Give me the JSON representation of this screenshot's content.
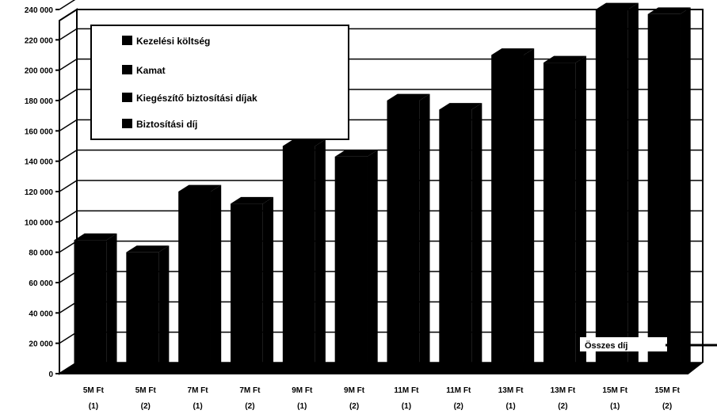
{
  "chart_data": {
    "type": "bar",
    "title": "",
    "xlabel": "",
    "ylabel": "",
    "ylim": [
      0,
      240000
    ],
    "yticks": [
      0,
      20000,
      40000,
      60000,
      80000,
      100000,
      120000,
      140000,
      160000,
      180000,
      200000,
      220000,
      240000
    ],
    "ytick_labels": [
      "0",
      "20 000",
      "40 000",
      "60 000",
      "80 000",
      "100 000",
      "120 000",
      "140 000",
      "160 000",
      "180 000",
      "200 000",
      "220 000",
      "240 000"
    ],
    "grid": true,
    "legend_position": "top-left",
    "categories": [
      "5M Ft",
      "5M Ft",
      "7M Ft",
      "7M Ft",
      "9M Ft",
      "9M Ft",
      "11M Ft",
      "11M Ft",
      "13M Ft",
      "13M Ft",
      "15M Ft",
      "15M Ft"
    ],
    "category_sublabels": [
      "(1)",
      "(2)",
      "(1)",
      "(2)",
      "(1)",
      "(2)",
      "(1)",
      "(2)",
      "(1)",
      "(2)",
      "(1)",
      "(2)"
    ],
    "values": [
      88000,
      80000,
      120000,
      112000,
      150000,
      143000,
      180000,
      174000,
      210000,
      205000,
      240000,
      237000
    ],
    "legend": [
      "Kezelési költség",
      "Kamat",
      "Kiegészítő biztosítási díjak",
      "Biztosítási díj"
    ],
    "annotation": "Összes díj",
    "colors": {
      "bar": "#000000",
      "background": "#ffffff",
      "grid": "#000000"
    }
  }
}
